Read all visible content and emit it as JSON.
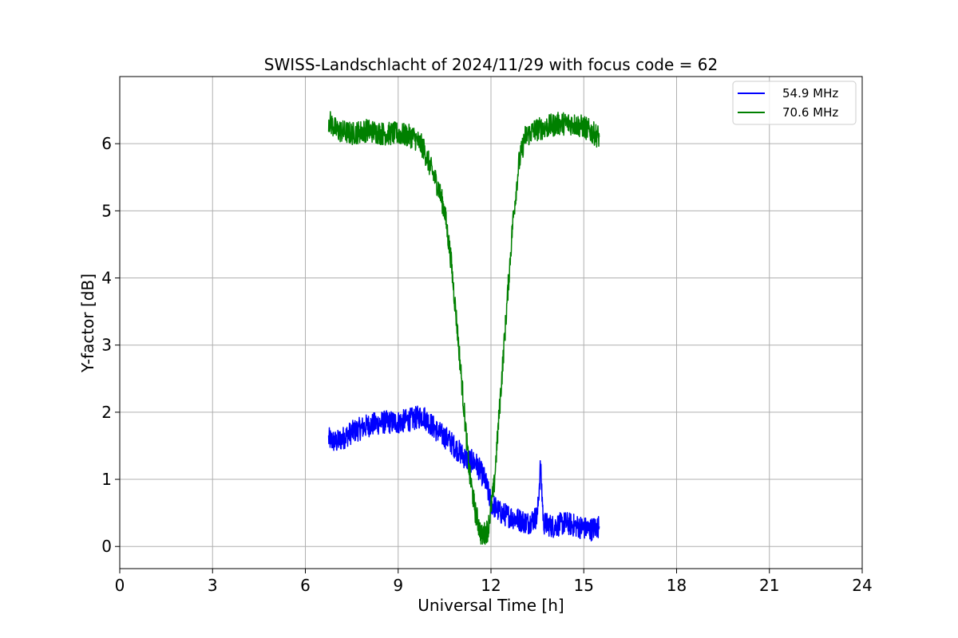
{
  "chart_data": {
    "type": "line",
    "title": "SWISS-Landschlacht of 2024/11/29 with focus code = 62",
    "xlabel": "Universal Time [h]",
    "ylabel": "Y-factor [dB]",
    "xlim": [
      0,
      24
    ],
    "ylim": [
      -0.33,
      7.0
    ],
    "xticks": [
      0,
      3,
      6,
      9,
      12,
      15,
      18,
      21,
      24
    ],
    "yticks": [
      0,
      1,
      2,
      3,
      4,
      5,
      6
    ],
    "grid": true,
    "legend_position": "top-right",
    "series": [
      {
        "name": "54.9 MHz",
        "color": "#0000ff",
        "x": [
          6.75,
          7.0,
          7.5,
          8.0,
          8.5,
          9.0,
          9.5,
          9.8,
          10.0,
          10.3,
          10.6,
          10.9,
          11.2,
          11.5,
          11.8,
          12.0,
          12.3,
          12.6,
          12.9,
          13.2,
          13.5,
          13.6,
          13.7,
          14.0,
          14.4,
          14.8,
          15.2,
          15.5
        ],
        "values": [
          1.6,
          1.55,
          1.7,
          1.8,
          1.85,
          1.85,
          1.9,
          1.95,
          1.85,
          1.7,
          1.6,
          1.45,
          1.3,
          1.25,
          1.0,
          0.65,
          0.5,
          0.45,
          0.4,
          0.35,
          0.45,
          1.2,
          0.35,
          0.3,
          0.35,
          0.3,
          0.25,
          0.3
        ]
      },
      {
        "name": "70.6 MHz",
        "color": "#008000",
        "x": [
          6.75,
          7.0,
          7.5,
          8.0,
          8.5,
          9.0,
          9.5,
          9.8,
          10.0,
          10.3,
          10.5,
          10.7,
          10.9,
          11.1,
          11.3,
          11.5,
          11.7,
          11.9,
          12.1,
          12.3,
          12.5,
          12.7,
          12.9,
          13.1,
          13.4,
          13.8,
          14.2,
          14.6,
          15.0,
          15.5
        ],
        "values": [
          6.35,
          6.2,
          6.15,
          6.2,
          6.15,
          6.15,
          6.1,
          5.95,
          5.7,
          5.35,
          5.0,
          4.3,
          3.3,
          2.2,
          1.1,
          0.5,
          0.15,
          0.25,
          0.9,
          2.2,
          3.5,
          4.8,
          5.7,
          6.1,
          6.2,
          6.25,
          6.3,
          6.3,
          6.25,
          6.1
        ]
      }
    ]
  }
}
